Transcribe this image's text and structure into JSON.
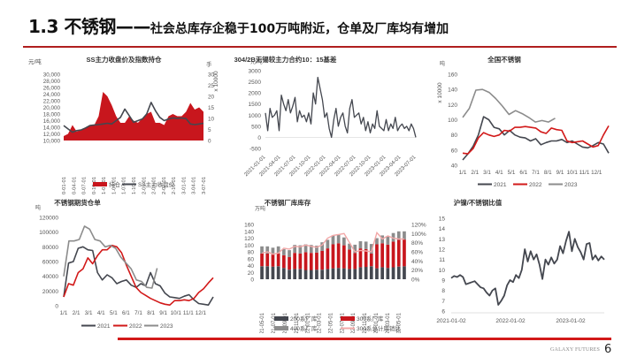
{
  "slide": {
    "title_main": "1.3 不锈钢——",
    "title_sub": "社会总库存企稳于100万吨附近，仓单及厂库均有增加",
    "footer_brand": "GALAXY FUTURES",
    "page_number": "6",
    "accent_color": "#c8161d"
  },
  "chart_data": [
    {
      "id": "ss-price-oi",
      "type": "area+line",
      "title": "SS主力收盘价及指数持仓",
      "ylabel_left": "元/吨",
      "ylabel_right": "手",
      "right_multiplier": "x 10000",
      "yticks_left": [
        "30,000",
        "28,000",
        "26,000",
        "24,000",
        "22,000",
        "20,000",
        "18,000",
        "16,000",
        "14,000",
        "12,000",
        "10,000"
      ],
      "ylim_left": [
        10000,
        30000
      ],
      "yticks_right": [
        "30",
        "25",
        "20",
        "15",
        "10",
        "5",
        "0"
      ],
      "ylim_right": [
        0,
        30
      ],
      "categories": [
        "2020-01-01",
        "2020-04-01",
        "2020-07-01",
        "2020-10-01",
        "2021-01-01",
        "2021-04-01",
        "2021-07-01",
        "2021-10-01",
        "2022-01-01",
        "2022-04-01",
        "2022-07-01",
        "2022-10-01",
        "2023-01-01",
        "2023-04-01",
        "2023-07-01"
      ],
      "legend": [
        "持仓",
        "SS主力收盘价"
      ],
      "series": [
        {
          "name": "持仓",
          "axis": "right",
          "color": "#c8161d",
          "values": [
            2,
            3,
            7,
            4,
            5,
            6,
            7,
            7,
            11,
            22,
            20,
            16,
            11,
            8,
            8,
            11,
            9,
            8,
            10,
            12,
            13,
            8,
            8,
            7,
            11,
            12,
            11,
            11,
            13,
            17,
            14,
            15,
            13
          ]
        },
        {
          "name": "SS主力收盘价",
          "axis": "left",
          "color": "#44474f",
          "values": [
            14500,
            13500,
            12500,
            13000,
            13200,
            13800,
            14500,
            14700,
            14800,
            15000,
            15200,
            15000,
            16000,
            17000,
            19500,
            17500,
            15500,
            16000,
            16500,
            18000,
            21500,
            19000,
            17000,
            16000,
            16500,
            16800,
            16700,
            16800,
            16600,
            15000,
            14800,
            15000,
            15200
          ]
        }
      ]
    },
    {
      "id": "basis-304",
      "type": "line",
      "title": "304/2B无锡较主力合约10：15基差",
      "ylabel": "元/吨",
      "yticks": [
        "3000",
        "2500",
        "2000",
        "1500",
        "1000",
        "500",
        "0",
        "-500"
      ],
      "ylim": [
        -500,
        3000
      ],
      "categories": [
        "2021-01-01",
        "2021-04-01",
        "2021-07-01",
        "2021-10-01",
        "2022-01-01",
        "2022-04-01",
        "2022-07-01",
        "2022-10-01",
        "2023-01-01",
        "2023-04-01",
        "2023-07-01"
      ],
      "series": [
        {
          "name": "基差",
          "color": "#44474f",
          "values": [
            1100,
            300,
            1300,
            900,
            1000,
            1200,
            300,
            1900,
            1500,
            1200,
            1700,
            1100,
            1400,
            1800,
            700,
            1200,
            900,
            1000,
            700,
            1100,
            600,
            2000,
            1500,
            2700,
            2200,
            1700,
            900,
            1100,
            400,
            0,
            800,
            1300,
            500,
            900,
            1100,
            500,
            200,
            1300,
            1700,
            900,
            1000,
            1100,
            600,
            900,
            300,
            700,
            200,
            600,
            400,
            1200,
            500,
            400,
            300,
            800,
            300,
            600,
            400,
            900,
            300,
            500,
            600,
            400,
            500,
            300,
            600,
            400,
            0
          ]
        }
      ]
    },
    {
      "id": "national-ss-inventory",
      "type": "line",
      "title": "全国不锈钢",
      "ylabel": "吨",
      "multiplier": "x 10000",
      "yticks": [
        "160",
        "140",
        "120",
        "100",
        "80",
        "60",
        "40"
      ],
      "ylim": [
        40,
        160
      ],
      "categories": [
        "1/1",
        "2/1",
        "3/1",
        "4/1",
        "5/1",
        "6/1",
        "7/1",
        "8/1",
        "9/1",
        "10/1",
        "11/1",
        "12/1"
      ],
      "legend": [
        "2021",
        "2022",
        "2023"
      ],
      "series": [
        {
          "name": "2021",
          "color": "#44474f",
          "values": [
            47,
            55,
            65,
            80,
            104,
            100,
            90,
            88,
            80,
            86,
            80,
            77,
            76,
            72,
            75,
            67,
            70,
            72,
            72,
            74,
            70,
            72,
            68,
            64,
            63,
            66,
            70,
            68,
            56
          ]
        },
        {
          "name": "2022",
          "color": "#d21919",
          "values": [
            56,
            55,
            62,
            76,
            83,
            80,
            78,
            80,
            86,
            85,
            90,
            90,
            91,
            90,
            89,
            84,
            82,
            89,
            87,
            86,
            72,
            70,
            71,
            72,
            68,
            64,
            66,
            80,
            92
          ]
        },
        {
          "name": "2023",
          "color": "#8c8c8c",
          "values": [
            103,
            115,
            139,
            140,
            136,
            128,
            118,
            107,
            112,
            108,
            103,
            97,
            99,
            97,
            102
          ]
        }
      ]
    },
    {
      "id": "ss-warrants",
      "type": "line",
      "title": "不锈钢期货仓单",
      "ylabel": "吨",
      "yticks": [
        "120000",
        "100000",
        "80000",
        "60000",
        "40000",
        "20000",
        "0"
      ],
      "ylim": [
        0,
        120000
      ],
      "categories": [
        "1/1",
        "2/1",
        "3/1",
        "4/1",
        "5/1",
        "6/1",
        "7/1",
        "8/1",
        "9/1",
        "10/1",
        "11/1",
        "12/1"
      ],
      "legend": [
        "2021",
        "2022",
        "2023"
      ],
      "series": [
        {
          "name": "2021",
          "color": "#44474f",
          "values": [
            12000,
            58000,
            60000,
            78000,
            80000,
            76000,
            75000,
            45000,
            35000,
            42000,
            38000,
            30000,
            33000,
            35000,
            28000,
            25000,
            30000,
            27000,
            45000,
            30000,
            27000,
            17000,
            12000,
            11000,
            10000,
            13000,
            15000,
            8000,
            3000,
            2000,
            1000,
            12000
          ]
        },
        {
          "name": "2022",
          "color": "#d21919",
          "values": [
            12000,
            30000,
            28000,
            45000,
            50000,
            65000,
            57000,
            68000,
            76000,
            76000,
            82000,
            80000,
            72000,
            55000,
            40000,
            25000,
            18000,
            14000,
            10000,
            7000,
            4000,
            2000,
            1000,
            7000,
            7000,
            8000,
            7000,
            10000,
            18000,
            23000,
            31000,
            38000
          ]
        },
        {
          "name": "2023",
          "color": "#8c8c8c",
          "values": [
            40000,
            88000,
            88000,
            90000,
            108000,
            104000,
            90000,
            88000,
            80000,
            82000,
            78000,
            66000,
            58000,
            50000,
            35000,
            33000,
            25000,
            24000,
            51000
          ]
        }
      ]
    },
    {
      "id": "ss-factory-inventory",
      "type": "bar+line",
      "title": "不锈钢厂库库存",
      "ylabel_left": "万吨",
      "yticks_left": [
        "160",
        "140",
        "120",
        "100",
        "80",
        "60",
        "40",
        "20",
        "0"
      ],
      "ylim_left": [
        0,
        160
      ],
      "yticks_right": [
        "120%",
        "100%",
        "80%",
        "60%",
        "40%",
        "20%",
        "0%"
      ],
      "ylim_right": [
        0,
        120
      ],
      "categories": [
        "2021-05-01",
        "2021-07-01",
        "2021-09-01",
        "2021-11-01",
        "2022-01-01",
        "2022-03-01",
        "2022-05-01",
        "2022-07-01",
        "2022-09-01",
        "2022-11-01",
        "2023-01-01",
        "2023-03-01",
        "2023-05-01"
      ],
      "legend": [
        "200系厂库",
        "300系厂库",
        "400系厂库",
        "300系总计库销比"
      ],
      "series": [
        {
          "name": "200系厂库",
          "color": "#44474f",
          "values": [
            38,
            38,
            37,
            38,
            33,
            28,
            30,
            30,
            27,
            27,
            28,
            28,
            30,
            32,
            33,
            32,
            30,
            30,
            35,
            36,
            38,
            32,
            35,
            33,
            35,
            37,
            38
          ]
        },
        {
          "name": "300系厂库",
          "color": "#c8161d",
          "values": [
            37,
            37,
            35,
            37,
            37,
            37,
            47,
            45,
            52,
            50,
            50,
            55,
            60,
            70,
            72,
            67,
            57,
            47,
            55,
            52,
            37,
            70,
            70,
            68,
            75,
            78,
            78
          ]
        },
        {
          "name": "400系厂库",
          "color": "#8c8c8c",
          "values": [
            21,
            21,
            20,
            21,
            18,
            20,
            23,
            24,
            23,
            23,
            20,
            25,
            25,
            26,
            25,
            23,
            17,
            24,
            21,
            22,
            28,
            18,
            23,
            24,
            25,
            25,
            24
          ]
        },
        {
          "name": "300系总计库销比",
          "color": "#f3a8a8",
          "axis": "right",
          "values": [
            57,
            60,
            55,
            57,
            68,
            66,
            72,
            71,
            75,
            72,
            70,
            75,
            90,
            96,
            98,
            100,
            80,
            60,
            63,
            62,
            60,
            102,
            88,
            95,
            90,
            88,
            88
          ]
        }
      ]
    },
    {
      "id": "ni-ss-ratio",
      "type": "line",
      "title": "沪镍/不锈钢比值",
      "yticks": [
        "15",
        "14",
        "13",
        "12",
        "11",
        "10",
        "9",
        "8",
        "7",
        "6"
      ],
      "ylim": [
        6,
        15
      ],
      "categories": [
        "2021-01-02",
        "2022-01-02",
        "2023-01-02"
      ],
      "series": [
        {
          "name": "比值",
          "color": "#44474f",
          "values": [
            9.2,
            9.4,
            9.3,
            9.5,
            9.3,
            8.6,
            8.7,
            8.8,
            8.9,
            8.6,
            8.3,
            8.2,
            7.8,
            7.5,
            8.0,
            8.2,
            6.6,
            7.0,
            7.5,
            8.5,
            9.0,
            8.8,
            9.5,
            9.2,
            10.0,
            12.0,
            10.8,
            11.8,
            11.0,
            11.5,
            10.5,
            9.1,
            11.0,
            10.5,
            11.2,
            10.6,
            11.0,
            12.3,
            11.6,
            12.8,
            13.7,
            11.8,
            13.0,
            12.2,
            11.7,
            11.0,
            12.5,
            12.6,
            11.0,
            11.4,
            10.9,
            11.3,
            11.0
          ]
        }
      ]
    }
  ]
}
